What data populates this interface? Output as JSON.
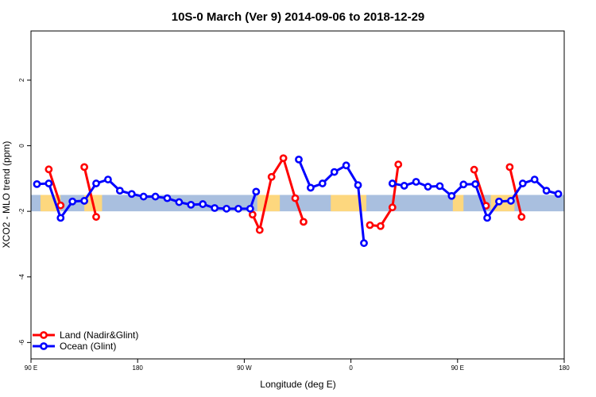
{
  "chart_data": {
    "type": "line",
    "title": "10S-0 March (Ver 9)   2014-09-06 to 2018-12-29",
    "xlabel": "Longitude (deg E)",
    "ylabel": "XCO2 - MLO trend (ppm)",
    "xlim": [
      90,
      540
    ],
    "ylim": [
      -6.5,
      3.5
    ],
    "x_ticks": [
      {
        "value": 90,
        "label": "90 E"
      },
      {
        "value": 180,
        "label": "180"
      },
      {
        "value": 270,
        "label": "90 W"
      },
      {
        "value": 360,
        "label": "0"
      },
      {
        "value": 450,
        "label": "90 E"
      },
      {
        "value": 540,
        "label": "180"
      }
    ],
    "y_ticks": [
      {
        "value": 2,
        "label": "2"
      },
      {
        "value": 0,
        "label": "0"
      },
      {
        "value": -2,
        "label": "-2"
      },
      {
        "value": -4,
        "label": "-4"
      },
      {
        "value": -6,
        "label": "-6"
      }
    ],
    "latitude_band": {
      "y_min": -2.0,
      "y_max": -1.5,
      "ocean_color": "#a9bfdf",
      "land_color": "#fdd77e"
    },
    "land_spans": [
      [
        98,
        115
      ],
      [
        135,
        150
      ],
      [
        281,
        300
      ],
      [
        343,
        373
      ],
      [
        446,
        455
      ],
      [
        478,
        498
      ]
    ],
    "legend": {
      "placement": "bottom-left"
    },
    "series": [
      {
        "name": "Land (Nadir&Glint)",
        "color": "#ff0000",
        "segments": [
          [
            [
              105,
              -0.72
            ],
            [
              115,
              -1.82
            ]
          ],
          [
            [
              135,
              -0.65
            ],
            [
              145,
              -2.17
            ]
          ],
          [
            [
              277,
              -2.1
            ],
            [
              283,
              -2.57
            ],
            [
              293,
              -0.95
            ],
            [
              303,
              -0.38
            ],
            [
              313,
              -1.6
            ],
            [
              320,
              -2.32
            ]
          ],
          [
            [
              376,
              -2.42
            ],
            [
              385,
              -2.45
            ],
            [
              395,
              -1.88
            ],
            [
              400,
              -0.57
            ]
          ],
          [
            [
              464,
              -0.73
            ],
            [
              474,
              -1.83
            ]
          ],
          [
            [
              494,
              -0.65
            ],
            [
              504,
              -2.17
            ]
          ]
        ]
      },
      {
        "name": "Ocean (Glint)",
        "color": "#0000ff",
        "segments": [
          [
            [
              95,
              -1.17
            ],
            [
              105,
              -1.15
            ],
            [
              115,
              -2.2
            ],
            [
              125,
              -1.7
            ],
            [
              135,
              -1.68
            ],
            [
              145,
              -1.15
            ],
            [
              155,
              -1.03
            ],
            [
              165,
              -1.37
            ],
            [
              175,
              -1.47
            ],
            [
              185,
              -1.55
            ],
            [
              195,
              -1.55
            ],
            [
              205,
              -1.6
            ],
            [
              215,
              -1.72
            ],
            [
              225,
              -1.8
            ],
            [
              235,
              -1.78
            ],
            [
              245,
              -1.9
            ],
            [
              255,
              -1.92
            ],
            [
              265,
              -1.92
            ],
            [
              275,
              -1.92
            ],
            [
              280,
              -1.4
            ]
          ],
          [
            [
              316,
              -0.42
            ],
            [
              326,
              -1.28
            ],
            [
              336,
              -1.15
            ],
            [
              346,
              -0.8
            ],
            [
              356,
              -0.6
            ],
            [
              366,
              -1.2
            ],
            [
              371,
              -2.97
            ]
          ],
          [
            [
              395,
              -1.15
            ],
            [
              405,
              -1.22
            ],
            [
              415,
              -1.1
            ],
            [
              425,
              -1.25
            ],
            [
              435,
              -1.23
            ],
            [
              445,
              -1.53
            ],
            [
              455,
              -1.18
            ],
            [
              465,
              -1.17
            ],
            [
              475,
              -2.2
            ],
            [
              485,
              -1.7
            ],
            [
              495,
              -1.68
            ],
            [
              505,
              -1.15
            ],
            [
              515,
              -1.03
            ],
            [
              525,
              -1.37
            ],
            [
              535,
              -1.47
            ]
          ]
        ]
      }
    ]
  }
}
